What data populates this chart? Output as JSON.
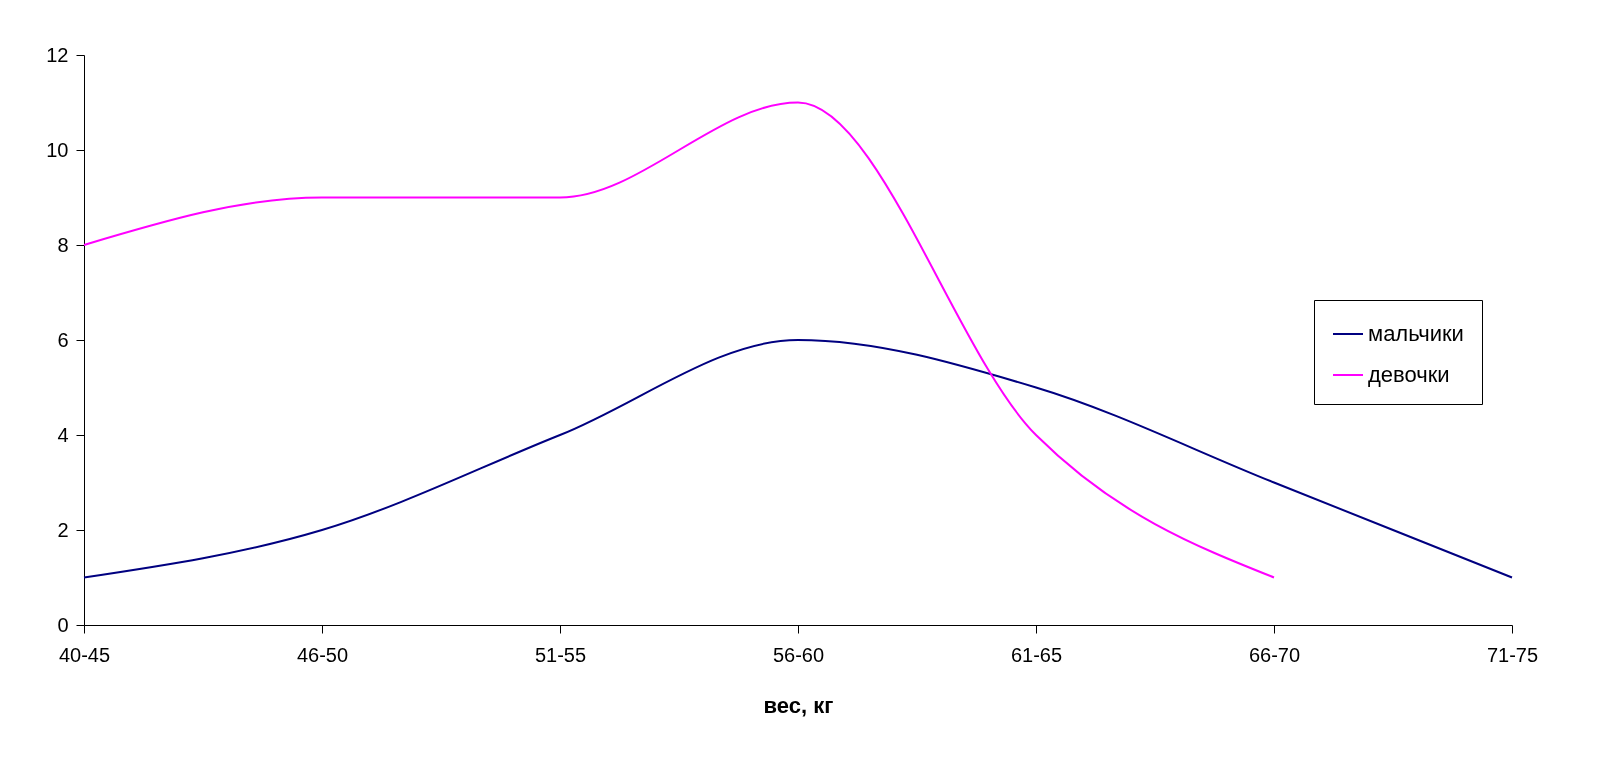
{
  "chart_data": {
    "type": "line",
    "xlabel": "вес, кг",
    "categories": [
      "40-45",
      "46-50",
      "51-55",
      "56-60",
      "61-65",
      "66-70",
      "71-75"
    ],
    "series": [
      {
        "name": "мальчики",
        "color": "#000080",
        "values": [
          1,
          2,
          4,
          6,
          5,
          3,
          1
        ]
      },
      {
        "name": "девочки",
        "color": "#ff00ff",
        "values": [
          8,
          9,
          9,
          11,
          4,
          1,
          null
        ]
      }
    ],
    "ylim": [
      0,
      12
    ],
    "yticks": [
      0,
      2,
      4,
      6,
      8,
      10,
      12
    ],
    "grid": false,
    "legend": "right",
    "marker": "none",
    "line_style": "solid"
  }
}
